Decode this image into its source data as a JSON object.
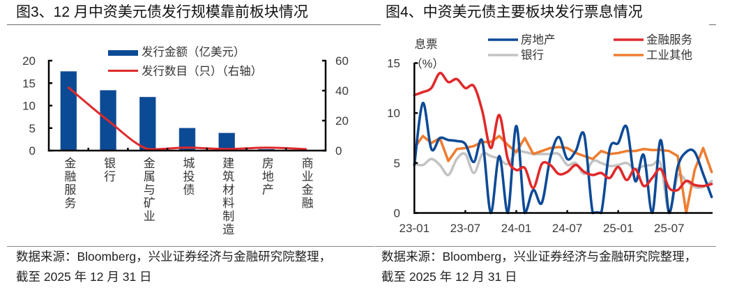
{
  "panels": [
    {
      "source_line1": "数据来源：Bloomberg，兴业证券经济与金融研究院整理，",
      "source_line2": "截至 2025 年 12 月 31 日"
    },
    {
      "source_line1": "数据来源：Bloomberg，兴业证券经济与金融研究院整理，",
      "source_line2": "截至 2025 年 12 月 31 日"
    }
  ],
  "chart_data": [
    {
      "type": "bar",
      "title": "图3、12 月中资美元债发行规模靠前板块情况",
      "categories": [
        "金融服务",
        "银行",
        "金属与矿业",
        "城投债",
        "建筑材料制造",
        "房地产",
        "商业金融"
      ],
      "series": [
        {
          "name": "发行金额（亿美元）",
          "type": "bar",
          "axis": "left",
          "color": "#0B4A94",
          "values": [
            17.6,
            13.4,
            11.9,
            5.0,
            3.9,
            0.3,
            0.1
          ]
        },
        {
          "name": "发行数目（只）（右轴）",
          "type": "line",
          "axis": "right",
          "color": "#E0292B",
          "values": [
            42,
            20,
            1,
            2,
            1,
            2,
            1
          ]
        }
      ],
      "xlabel": "",
      "ylabel": "",
      "ylim": [
        0,
        20
      ],
      "yticks": [
        0,
        5,
        10,
        15,
        20
      ],
      "y2lim": [
        0,
        60
      ],
      "y2ticks": [
        0,
        20,
        40,
        60
      ],
      "grid": false,
      "legend": "top-center"
    },
    {
      "type": "line",
      "title": "图4、中资美元债主要板块发行票息情况",
      "ylabel": "息票",
      "yunit": "（%）",
      "xlabel": "",
      "x": [
        "23-01",
        "23-02",
        "23-03",
        "23-04",
        "23-05",
        "23-06",
        "23-07",
        "23-08",
        "23-09",
        "23-10",
        "23-11",
        "23-12",
        "24-01",
        "24-02",
        "24-03",
        "24-04",
        "24-05",
        "24-06",
        "24-07",
        "24-08",
        "24-09",
        "24-10",
        "24-11",
        "24-12",
        "25-01",
        "25-02",
        "25-03",
        "25-04",
        "25-05",
        "25-06",
        "25-07",
        "25-08",
        "25-09",
        "25-10",
        "25-11",
        "25-12"
      ],
      "xticks": [
        "23-01",
        "23-07",
        "24-01",
        "24-07",
        "25-01",
        "25-07"
      ],
      "ylim": [
        0,
        15
      ],
      "yticks": [
        0,
        5,
        10,
        15
      ],
      "grid": false,
      "legend": "top-right",
      "series": [
        {
          "name": "房地产",
          "color": "#0D4A96",
          "line_style": "smooth",
          "values": [
            4.8,
            11.0,
            6.4,
            7.5,
            7.3,
            7.2,
            6.9,
            5.1,
            7.2,
            0,
            5.7,
            0,
            8.7,
            0,
            2.3,
            1.0,
            5.5,
            7.6,
            5.4,
            6.2,
            7.8,
            0,
            0,
            6.4,
            7.0,
            8.6,
            3.2,
            5.8,
            0,
            7.3,
            0,
            4.6,
            6.1,
            6.1,
            3.9,
            1.6
          ]
        },
        {
          "name": "金融服务",
          "color": "#E0292B",
          "line_style": "smooth",
          "values": [
            11.8,
            12.1,
            12.5,
            14.0,
            13.1,
            13.4,
            12.5,
            12.7,
            10.2,
            6.5,
            9.8,
            5.4,
            4.3,
            4.5,
            2.5,
            4.9,
            4.8,
            3.9,
            4.1,
            4.8,
            4.1,
            3.8,
            4.0,
            3.5,
            4.6,
            3.3,
            4.4,
            2.7,
            3.5,
            4.4,
            2.5,
            2.3,
            3.2,
            2.8,
            2.7,
            2.9
          ]
        },
        {
          "name": "银行",
          "color": "#C3C3C3",
          "line_style": "smooth",
          "values": [
            4.9,
            4.8,
            5.4,
            4.8,
            3.8,
            5.4,
            5.9,
            4.0,
            5.9,
            5.7,
            5.4,
            4.9,
            6.1,
            6.1,
            5.9,
            5.9,
            5.9,
            5.9,
            4.8,
            5.0,
            3.9,
            5.2,
            5.0,
            4.7,
            4.8,
            5.0,
            4.4,
            4.7,
            4.8,
            4.9,
            0,
            3.7,
            3.2,
            2.6,
            2.6,
            3.2
          ]
        },
        {
          "name": "工业其他",
          "color": "#EE7D31",
          "line_style": "straight",
          "values": [
            6.5,
            7.7,
            7.0,
            7.5,
            5.2,
            6.4,
            6.5,
            6.7,
            7.1,
            7.1,
            7.7,
            6.8,
            6.1,
            7.5,
            5.9,
            6.2,
            6.5,
            6.6,
            6.5,
            6.0,
            5.7,
            5.4,
            6.2,
            5.9,
            6.0,
            6.2,
            6.2,
            6.4,
            6.3,
            6.3,
            6.2,
            5.7,
            0,
            4.3,
            6.5,
            4.1
          ]
        }
      ]
    }
  ]
}
